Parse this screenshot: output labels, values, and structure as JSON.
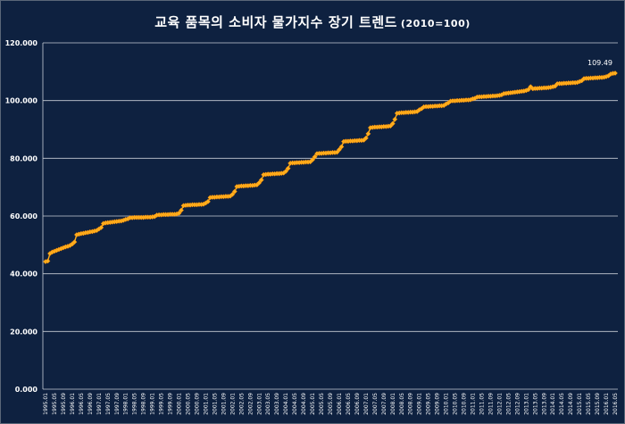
{
  "chart_title": "교육 품목의 소비자 물가지수 장기 트렌드",
  "chart_subtitle": "(2010=100)",
  "colors": {
    "background": "#0e2140",
    "grid": "#c7cdd6",
    "series": "#ffb020",
    "marker_edge": "#ff8c00",
    "text": "#ffffff"
  },
  "chart_data": {
    "type": "line",
    "title": "교육 품목의 소비자 물가지수 장기 트렌드 (2010=100)",
    "xlabel": "",
    "ylabel": "",
    "ylim": [
      0,
      120
    ],
    "yticks": [
      0,
      20,
      40,
      60,
      80,
      100,
      120
    ],
    "ytick_labels": [
      "0.000",
      "20.000",
      "40.000",
      "60.000",
      "80.000",
      "100.000",
      "120.000"
    ],
    "grid": true,
    "legend": "none",
    "marker": "diamond",
    "frequency": "monthly",
    "x_start": "1995.01",
    "x_end": "2016.05",
    "x_tick_labels": [
      "1995.01",
      "1995.05",
      "1995.09",
      "1996.01",
      "1996.05",
      "1996.09",
      "1997.01",
      "1997.05",
      "1997.09",
      "1998.01",
      "1998.05",
      "1998.09",
      "1999.01",
      "1999.05",
      "1999.09",
      "2000.01",
      "2000.05",
      "2000.09",
      "2001.01",
      "2001.05",
      "2001.09",
      "2002.01",
      "2002.05",
      "2002.09",
      "2003.01",
      "2003.05",
      "2003.09",
      "2004.01",
      "2004.05",
      "2004.09",
      "2005.01",
      "2005.05",
      "2005.09",
      "2006.01",
      "2006.05",
      "2006.09",
      "2007.01",
      "2007.05",
      "2007.09",
      "2008.01",
      "2008.05",
      "2008.09",
      "2009.01",
      "2009.05",
      "2009.09",
      "2010.01",
      "2010.05",
      "2010.09",
      "2011.01",
      "2011.05",
      "2011.09",
      "2012.01",
      "2012.05",
      "2012.09",
      "2013.01",
      "2013.05",
      "2013.09",
      "2014.01",
      "2014.05",
      "2014.09",
      "2015.01",
      "2015.05",
      "2015.09",
      "2016.01",
      "2016.05"
    ],
    "series": [
      {
        "yearly": [
          {
            "year": 1995,
            "values": [
              44.2,
              44.4,
              47.0,
              47.5,
              47.8,
              48.1,
              48.4,
              48.7,
              49.0,
              49.3,
              49.5,
              49.8
            ]
          },
          {
            "year": 1996,
            "values": [
              50.3,
              51.0,
              53.5,
              53.7,
              53.9,
              54.0,
              54.2,
              54.3,
              54.5,
              54.6,
              54.8,
              55.0
            ]
          },
          {
            "year": 1997,
            "values": [
              55.5,
              56.0,
              57.4,
              57.6,
              57.7,
              57.8,
              57.9,
              58.0,
              58.1,
              58.2,
              58.3,
              58.5
            ]
          },
          {
            "year": 1998,
            "values": [
              58.8,
              59.0,
              59.4,
              59.4,
              59.5,
              59.5,
              59.5,
              59.5,
              59.5,
              59.6,
              59.6,
              59.6
            ]
          },
          {
            "year": 1999,
            "values": [
              59.7,
              59.8,
              60.3,
              60.4,
              60.4,
              60.5,
              60.5,
              60.5,
              60.6,
              60.6,
              60.6,
              60.7
            ]
          },
          {
            "year": 2000,
            "values": [
              61.0,
              62.0,
              63.6,
              63.7,
              63.8,
              63.8,
              63.9,
              63.9,
              63.9,
              64.0,
              64.0,
              64.1
            ]
          },
          {
            "year": 2001,
            "values": [
              64.5,
              65.0,
              66.4,
              66.5,
              66.5,
              66.6,
              66.6,
              66.7,
              66.7,
              66.8,
              66.8,
              66.9
            ]
          },
          {
            "year": 2002,
            "values": [
              67.5,
              68.5,
              70.2,
              70.3,
              70.4,
              70.4,
              70.5,
              70.5,
              70.6,
              70.6,
              70.7,
              70.8
            ]
          },
          {
            "year": 2003,
            "values": [
              71.5,
              72.5,
              74.3,
              74.4,
              74.5,
              74.5,
              74.6,
              74.6,
              74.7,
              74.7,
              74.8,
              74.9
            ]
          },
          {
            "year": 2004,
            "values": [
              75.5,
              76.5,
              78.3,
              78.4,
              78.4,
              78.5,
              78.5,
              78.6,
              78.6,
              78.7,
              78.7,
              78.8
            ]
          },
          {
            "year": 2005,
            "values": [
              79.5,
              80.5,
              81.6,
              81.7,
              81.7,
              81.8,
              81.8,
              81.9,
              81.9,
              82.0,
              82.0,
              82.1
            ]
          },
          {
            "year": 2006,
            "values": [
              83.0,
              84.0,
              85.8,
              85.9,
              85.9,
              86.0,
              86.0,
              86.1,
              86.1,
              86.2,
              86.2,
              86.3
            ]
          },
          {
            "year": 2007,
            "values": [
              87.0,
              88.5,
              90.6,
              90.7,
              90.8,
              90.8,
              90.9,
              90.9,
              91.0,
              91.0,
              91.1,
              91.2
            ]
          },
          {
            "year": 2008,
            "values": [
              92.0,
              93.5,
              95.6,
              95.7,
              95.8,
              95.8,
              95.9,
              95.9,
              96.0,
              96.0,
              96.1,
              96.2
            ]
          },
          {
            "year": 2009,
            "values": [
              96.8,
              97.2,
              97.8,
              97.9,
              97.9,
              98.0,
              98.0,
              98.1,
              98.1,
              98.2,
              98.2,
              98.3
            ]
          },
          {
            "year": 2010,
            "values": [
              98.8,
              99.2,
              99.8,
              99.9,
              99.9,
              100.0,
              100.0,
              100.1,
              100.1,
              100.2,
              100.2,
              100.3
            ]
          },
          {
            "year": 2011,
            "values": [
              100.6,
              100.8,
              101.2,
              101.3,
              101.3,
              101.4,
              101.4,
              101.5,
              101.5,
              101.6,
              101.6,
              101.7
            ]
          },
          {
            "year": 2012,
            "values": [
              101.8,
              102.0,
              102.4,
              102.5,
              102.6,
              102.7,
              102.8,
              102.9,
              103.0,
              103.1,
              103.2,
              103.3
            ]
          },
          {
            "year": 2013,
            "values": [
              103.5,
              103.8,
              104.8,
              104.1,
              104.2,
              104.2,
              104.3,
              104.3,
              104.4,
              104.4,
              104.5,
              104.6
            ]
          },
          {
            "year": 2014,
            "values": [
              104.8,
              105.0,
              105.8,
              105.9,
              105.9,
              106.0,
              106.0,
              106.1,
              106.1,
              106.2,
              106.2,
              106.3
            ]
          },
          {
            "year": 2015,
            "values": [
              106.6,
              106.9,
              107.6,
              107.7,
              107.7,
              107.8,
              107.8,
              107.9,
              107.9,
              108.0,
              108.0,
              108.1
            ]
          },
          {
            "year": 2016,
            "values": [
              108.3,
              108.6,
              109.2,
              109.4,
              109.49
            ]
          }
        ]
      }
    ],
    "annotations": [
      {
        "label": "109.49",
        "at": "2016.05",
        "value": 109.49
      }
    ]
  }
}
